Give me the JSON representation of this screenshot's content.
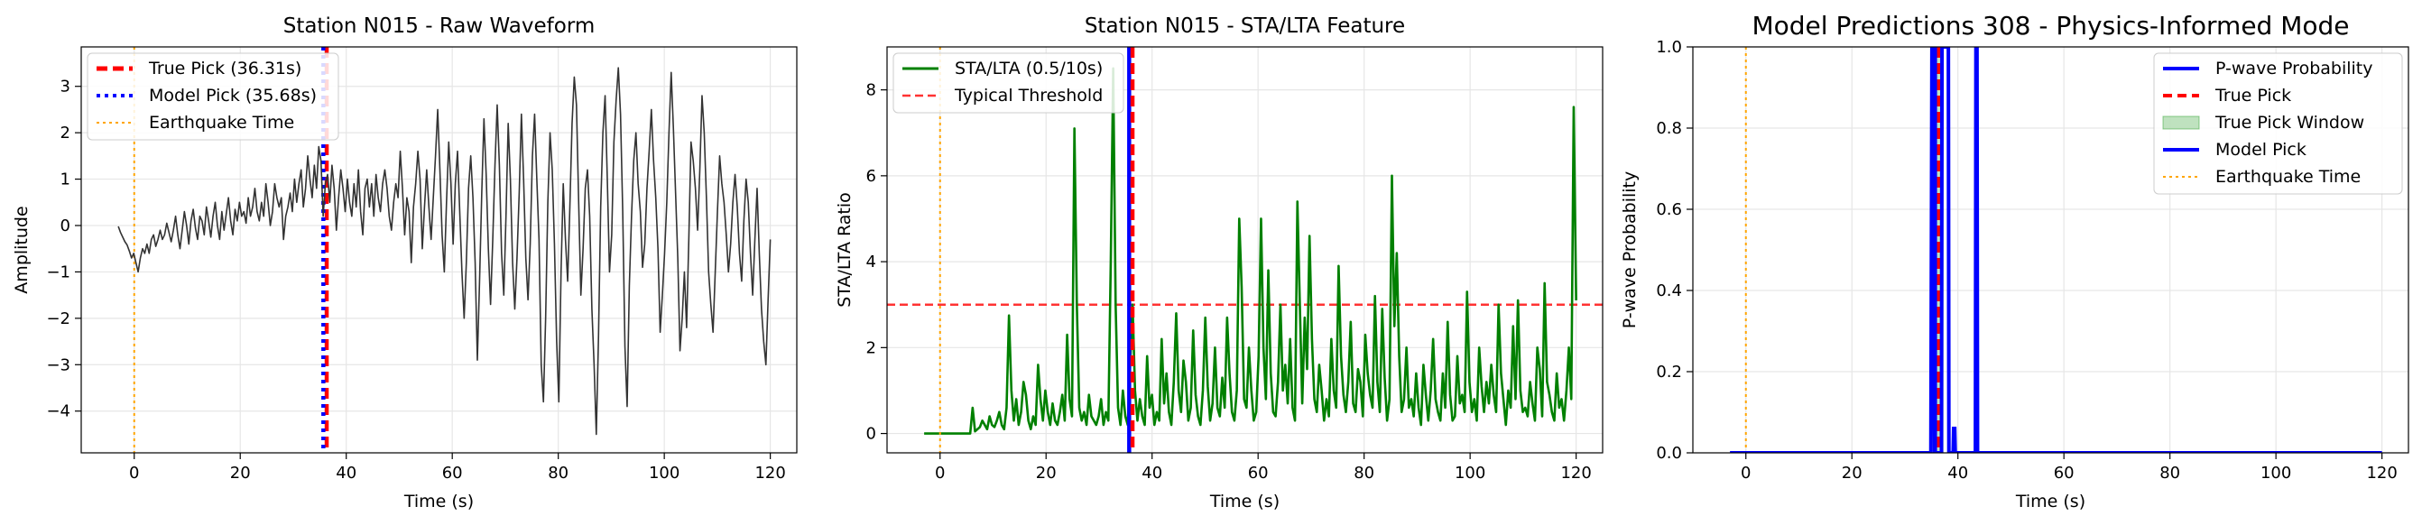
{
  "chart_data": [
    {
      "type": "line",
      "title": "Station N015 - Raw Waveform",
      "xlabel": "Time (s)",
      "ylabel": "Amplitude",
      "xlim": [
        -10,
        125
      ],
      "ylim": [
        -4.9,
        3.85
      ],
      "xticks": [
        "0",
        "20",
        "40",
        "60",
        "80",
        "100",
        "120"
      ],
      "yticks": [
        "−4",
        "−3",
        "−2",
        "−1",
        "0",
        "1",
        "2",
        "3"
      ],
      "grid": true,
      "legend_position": "upper-left",
      "legend": [
        "True Pick (36.31s)",
        "Model Pick (35.68s)",
        "Earthquake Time"
      ],
      "series": [
        {
          "name": "waveform",
          "color": "#333333",
          "x_start": -3,
          "x_end": 120,
          "dt": 0.5,
          "values": [
            -0.02,
            -0.15,
            -0.25,
            -0.35,
            -0.42,
            -0.55,
            -0.7,
            -0.6,
            -0.8,
            -1.0,
            -0.7,
            -0.5,
            -0.6,
            -0.4,
            -0.6,
            -0.3,
            -0.2,
            -0.45,
            -0.3,
            -0.1,
            -0.3,
            -0.2,
            0.05,
            -0.15,
            -0.35,
            -0.1,
            0.2,
            -0.2,
            -0.5,
            -0.1,
            0.3,
            0.0,
            -0.4,
            0.1,
            0.35,
            -0.05,
            -0.3,
            0.2,
            0.1,
            -0.2,
            0.4,
            0.1,
            -0.25,
            0.2,
            0.5,
            0.0,
            -0.3,
            0.3,
            -0.1,
            0.25,
            0.6,
            0.1,
            -0.2,
            0.35,
            0.1,
            0.5,
            0.2,
            0.3,
            0.05,
            0.6,
            0.2,
            0.4,
            0.8,
            0.3,
            0.1,
            0.5,
            0.2,
            0.9,
            0.5,
            0.0,
            0.3,
            0.9,
            0.6,
            0.4,
            0.6,
            -0.3,
            0.2,
            0.4,
            0.7,
            0.3,
            1.0,
            0.5,
            0.9,
            1.2,
            0.4,
            0.8,
            1.5,
            1.0,
            0.6,
            1.3,
            0.8,
            1.7,
            1.4,
            0.2,
            0.9,
            1.1,
            0.5,
            1.3,
            0.8,
            -0.1,
            0.6,
            1.2,
            0.8,
            0.3,
            1.0,
            0.5,
            0.2,
            0.9,
            0.4,
            1.2,
            0.3,
            -0.2,
            0.8,
            1.0,
            0.4,
            0.9,
            0.2,
            1.1,
            0.6,
            0.3,
            0.9,
            1.2,
            0.8,
            0.2,
            -0.1,
            0.5,
            0.9,
            0.6,
            1.6,
            0.8,
            -0.2,
            0.6,
            0.3,
            -0.8,
            0.4,
            0.9,
            1.6,
            1.0,
            -0.5,
            0.4,
            1.2,
            0.4,
            -0.3,
            0.6,
            1.5,
            2.5,
            1.2,
            -0.2,
            -1.0,
            0.5,
            1.8,
            0.9,
            -0.4,
            0.9,
            1.6,
            0.3,
            -1.0,
            -2.0,
            -0.8,
            0.8,
            1.5,
            0.6,
            -0.8,
            -2.9,
            -1.2,
            0.7,
            2.3,
            1.1,
            -0.5,
            -1.7,
            -0.3,
            1.3,
            2.6,
            1.3,
            -0.6,
            -1.5,
            0.2,
            2.2,
            1.0,
            -0.8,
            -1.8,
            -0.7,
            0.7,
            2.4,
            1.0,
            -0.7,
            -1.6,
            -0.4,
            1.5,
            2.4,
            1.0,
            -0.3,
            -3.0,
            -3.8,
            -2.0,
            0.5,
            2.0,
            1.2,
            -0.4,
            -2.5,
            -3.8,
            -1.0,
            0.9,
            -0.3,
            -1.2,
            0.4,
            2.2,
            3.2,
            2.6,
            0.5,
            -1.5,
            -0.5,
            0.8,
            1.2,
            0.2,
            -1.8,
            -3.0,
            -4.5,
            -2.4,
            0.4,
            2.0,
            2.8,
            1.0,
            -1.0,
            -0.2,
            1.8,
            2.7,
            3.4,
            2.4,
            0.3,
            -2.6,
            -3.9,
            -1.3,
            0.2,
            1.4,
            2.0,
            0.9,
            0.3,
            -0.9,
            -0.4,
            0.8,
            1.6,
            2.5,
            1.4,
            0.6,
            -0.5,
            -2.3,
            -1.5,
            -0.6,
            0.5,
            2.0,
            3.3,
            2.1,
            0.7,
            -0.7,
            -2.7,
            -2.0,
            -1.0,
            -2.2,
            -0.3,
            1.8,
            1.4,
            0.8,
            -0.1,
            1.2,
            2.8,
            2.0,
            0.6,
            -1.0,
            -1.7,
            -2.3,
            -1.0,
            0.3,
            1.5,
            0.9,
            0.5,
            -0.2,
            -1.0,
            -0.4,
            0.5,
            1.1,
            0.4,
            -0.6,
            -1.2,
            0.1,
            1.0,
            0.5,
            -0.6,
            -1.5,
            -0.3,
            0.8,
            -0.6,
            -1.8,
            -2.5,
            -3.0,
            -1.6,
            -0.3
          ]
        }
      ],
      "vlines": [
        {
          "name": "True Pick (36.31s)",
          "x": 36.31,
          "color": "#ff0000",
          "style": "dashed"
        },
        {
          "name": "Model Pick (35.68s)",
          "x": 35.68,
          "color": "#0000ff",
          "style": "dotted"
        },
        {
          "name": "Earthquake Time",
          "x": 0,
          "color": "#ffa500",
          "style": "dotted"
        }
      ]
    },
    {
      "type": "line",
      "title": "Station N015 - STA/LTA Feature",
      "xlabel": "Time (s)",
      "ylabel": "STA/LTA Ratio",
      "xlim": [
        -10,
        125
      ],
      "ylim": [
        -0.45,
        9.0
      ],
      "xticks": [
        "0",
        "20",
        "40",
        "60",
        "80",
        "100",
        "120"
      ],
      "yticks": [
        "0",
        "2",
        "4",
        "6",
        "8"
      ],
      "grid": true,
      "legend_position": "upper-left",
      "legend": [
        "STA/LTA (0.5/10s)",
        "Typical Threshold"
      ],
      "series": [
        {
          "name": "STA/LTA (0.5/10s)",
          "color": "#008000",
          "x_start": -3,
          "x_end": 120,
          "dt": 0.5,
          "values": [
            0,
            0,
            0,
            0,
            0,
            0,
            0,
            0,
            0,
            0,
            0,
            0,
            0,
            0,
            0,
            0,
            0,
            0,
            0,
            0,
            0.6,
            0.05,
            0.1,
            0.15,
            0.3,
            0.2,
            0.1,
            0.4,
            0.2,
            0.15,
            0.3,
            0.5,
            0.2,
            0.1,
            0.6,
            2.75,
            1.0,
            0.3,
            0.8,
            0.2,
            0.5,
            1.2,
            0.9,
            0.3,
            0.1,
            0.4,
            0.2,
            1.6,
            0.8,
            0.3,
            1.0,
            0.5,
            0.2,
            0.7,
            0.3,
            0.2,
            0.5,
            0.9,
            0.3,
            2.3,
            0.8,
            0.4,
            7.1,
            3.0,
            0.6,
            0.3,
            0.5,
            0.2,
            0.9,
            0.4,
            0.3,
            0.2,
            0.4,
            0.8,
            0.2,
            0.5,
            0.3,
            4.0,
            8.5,
            3.0,
            0.6,
            0.2,
            1.0,
            0.4,
            0.2,
            1.6,
            3.0,
            1.0,
            0.3,
            0.8,
            0.4,
            0.2,
            1.8,
            0.6,
            0.9,
            0.2,
            0.5,
            0.3,
            2.2,
            0.7,
            1.4,
            0.5,
            0.2,
            1.2,
            2.8,
            1.0,
            0.5,
            1.7,
            1.2,
            0.3,
            0.6,
            2.4,
            0.9,
            0.4,
            0.2,
            1.0,
            2.7,
            1.1,
            0.3,
            0.7,
            2.0,
            0.6,
            0.4,
            1.3,
            0.6,
            2.7,
            1.4,
            0.5,
            0.3,
            1.0,
            5.0,
            3.4,
            0.8,
            0.6,
            2.0,
            1.0,
            0.3,
            0.5,
            1.8,
            5.0,
            2.0,
            0.8,
            3.8,
            1.4,
            0.5,
            0.4,
            1.2,
            3.0,
            1.0,
            1.6,
            0.7,
            2.2,
            0.6,
            0.3,
            5.4,
            3.0,
            0.7,
            2.7,
            1.5,
            4.6,
            2.2,
            0.8,
            0.5,
            1.6,
            1.0,
            0.3,
            0.8,
            0.4,
            2.2,
            1.0,
            0.6,
            3.9,
            1.8,
            0.9,
            0.5,
            1.2,
            2.6,
            0.7,
            0.5,
            1.5,
            1.2,
            0.4,
            2.3,
            1.4,
            0.9,
            0.6,
            3.2,
            1.2,
            0.5,
            2.9,
            1.3,
            0.3,
            0.8,
            6.0,
            2.5,
            4.2,
            1.8,
            0.5,
            0.8,
            2.0,
            0.6,
            0.8,
            0.4,
            1.4,
            0.6,
            0.2,
            1.6,
            0.9,
            0.3,
            1.0,
            2.2,
            0.8,
            0.5,
            0.3,
            1.4,
            0.6,
            2.6,
            0.9,
            0.3,
            0.4,
            1.8,
            0.7,
            0.9,
            0.5,
            3.3,
            1.2,
            0.5,
            0.8,
            0.3,
            2.0,
            1.1,
            0.5,
            1.2,
            0.7,
            1.6,
            0.9,
            0.5,
            3.0,
            1.4,
            0.8,
            0.2,
            1.0,
            0.6,
            2.5,
            0.8,
            3.1,
            1.0,
            0.5,
            0.6,
            0.4,
            1.2,
            0.7,
            0.3,
            2.0,
            1.5,
            0.4,
            3.5,
            1.2,
            0.9,
            0.5,
            0.3,
            1.4,
            0.6,
            0.8,
            0.3,
            1.0,
            2.0,
            0.8,
            7.6,
            3.1
          ]
        }
      ],
      "hlines": [
        {
          "name": "Typical Threshold",
          "y": 3.0,
          "color": "#ff0000",
          "style": "dashed"
        }
      ],
      "vlines": [
        {
          "name": "model pick",
          "x": 35.68,
          "color": "#0000ff",
          "style": "solid"
        },
        {
          "name": "true pick",
          "x": 36.31,
          "color": "#ff0000",
          "style": "dashed"
        },
        {
          "name": "earthquake time",
          "x": 0,
          "color": "#ffa500",
          "style": "dotted"
        }
      ]
    },
    {
      "type": "line",
      "title": "Model Predictions 308 - Physics-Informed Mode",
      "xlabel": "Time (s)",
      "ylabel": "P-wave Probability",
      "xlim": [
        -10,
        125
      ],
      "ylim": [
        0,
        1.0
      ],
      "xticks": [
        "0",
        "20",
        "40",
        "60",
        "80",
        "100",
        "120"
      ],
      "yticks": [
        "0.0",
        "0.2",
        "0.4",
        "0.6",
        "0.8",
        "1.0"
      ],
      "grid": true,
      "legend_position": "upper-right",
      "legend": [
        "P-wave Probability",
        "True Pick",
        "True Pick Window",
        "Model Pick",
        "Earthquake Time"
      ],
      "series": [
        {
          "name": "P-wave Probability",
          "color": "#0000ff",
          "points": [
            [
              -3,
              0
            ],
            [
              34.9,
              0
            ],
            [
              35.1,
              1.0
            ],
            [
              35.5,
              1.0
            ],
            [
              35.6,
              0
            ],
            [
              36.9,
              0
            ],
            [
              37.0,
              1.0
            ],
            [
              38.2,
              1.0
            ],
            [
              38.3,
              0
            ],
            [
              39.1,
              0
            ],
            [
              39.2,
              0.06
            ],
            [
              39.4,
              0.06
            ],
            [
              39.5,
              0
            ],
            [
              43.3,
              0
            ],
            [
              43.4,
              1.0
            ],
            [
              43.6,
              1.0
            ],
            [
              43.7,
              0
            ],
            [
              120,
              0
            ]
          ]
        }
      ],
      "shaded_window": {
        "name": "True Pick Window",
        "x0": 35.3,
        "x1": 37.3,
        "color": "#2ca02c"
      },
      "vlines": [
        {
          "name": "True Pick",
          "x": 36.31,
          "color": "#ff0000",
          "style": "dashed"
        },
        {
          "name": "Model Pick",
          "x": 35.68,
          "color": "#0000ff",
          "style": "solid"
        },
        {
          "name": "Earthquake Time",
          "x": 0,
          "color": "#ffa500",
          "style": "dotted"
        }
      ]
    }
  ]
}
